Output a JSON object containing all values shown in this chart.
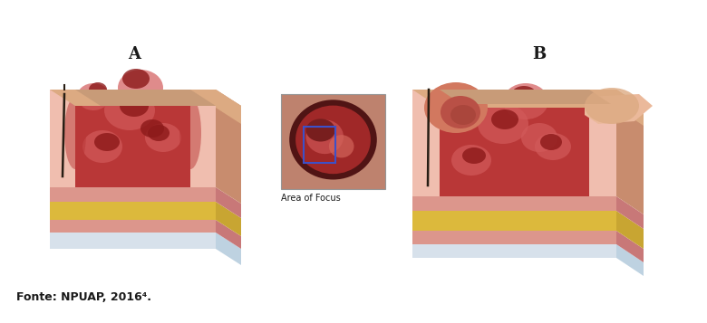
{
  "label_A": "A",
  "label_B": "B",
  "label_area": "Area of Focus",
  "footer_text": "Fonte: NPUAP, 2016⁴.",
  "bg_color": "#ffffff",
  "label_fontsize": 13,
  "footer_fontsize": 9,
  "area_label_fontsize": 7,
  "footer_bold": true,
  "footer_italic": false
}
